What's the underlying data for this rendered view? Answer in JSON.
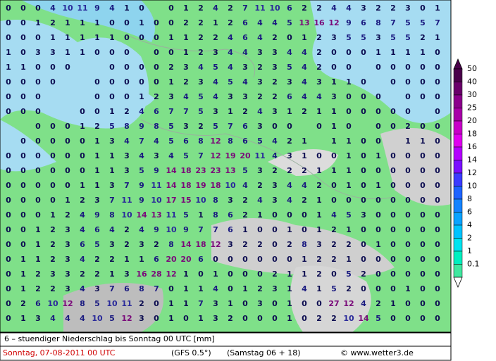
{
  "footer": {
    "title": "6 – stuendiger Niederschlag bis Sonntag 00 UTC [mm]",
    "date": "Sonntag, 07-08-2011  00 UTC",
    "model": "(GFS 0.5°)",
    "run": "(Samstag 06 + 18)",
    "copyright": "© www.wetter3.de"
  },
  "legend": {
    "levels": [
      50,
      40,
      30,
      25,
      20,
      18,
      16,
      14,
      12,
      10,
      8,
      6,
      4,
      2,
      1,
      0.1
    ],
    "colors": [
      "#4a004a",
      "#6a006a",
      "#8c008c",
      "#a800a8",
      "#c800c8",
      "#e000f0",
      "#b400ff",
      "#7a10ff",
      "#3c3cff",
      "#1e64ff",
      "#1484ff",
      "#0aa4ff",
      "#00c4ff",
      "#00e4f0",
      "#00f0c0",
      "#40e8a0"
    ]
  },
  "grid": {
    "rows": [
      [
        0,
        0,
        0,
        4,
        10,
        11,
        9,
        4,
        1,
        0,
        null,
        0,
        1,
        2,
        4,
        2,
        7,
        11,
        10,
        6,
        2,
        2,
        4,
        4,
        3,
        2,
        2,
        3,
        0,
        1
      ],
      [
        0,
        0,
        1,
        2,
        1,
        1,
        1,
        0,
        0,
        1,
        0,
        0,
        2,
        2,
        1,
        2,
        6,
        4,
        4,
        5,
        13,
        16,
        12,
        9,
        6,
        8,
        7,
        5,
        5,
        7
      ],
      [
        0,
        0,
        0,
        1,
        1,
        1,
        1,
        1,
        0,
        0,
        0,
        1,
        1,
        2,
        2,
        4,
        6,
        4,
        2,
        0,
        1,
        2,
        3,
        5,
        5,
        3,
        5,
        5,
        2,
        1
      ],
      [
        1,
        0,
        3,
        3,
        1,
        1,
        0,
        0,
        0,
        null,
        0,
        0,
        1,
        2,
        3,
        4,
        4,
        3,
        3,
        4,
        4,
        2,
        0,
        0,
        0,
        1,
        1,
        1,
        1,
        0
      ],
      [
        1,
        1,
        0,
        0,
        0,
        null,
        null,
        0,
        0,
        0,
        0,
        2,
        3,
        4,
        5,
        4,
        3,
        2,
        3,
        5,
        4,
        2,
        0,
        0,
        null,
        0,
        0,
        0,
        0,
        0
      ],
      [
        0,
        0,
        0,
        0,
        null,
        null,
        0,
        0,
        0,
        0,
        0,
        1,
        2,
        3,
        4,
        5,
        4,
        3,
        2,
        3,
        4,
        3,
        1,
        1,
        0,
        null,
        0,
        0,
        0,
        0
      ],
      [
        0,
        0,
        0,
        null,
        null,
        null,
        0,
        0,
        0,
        1,
        2,
        3,
        4,
        5,
        4,
        3,
        3,
        2,
        2,
        6,
        4,
        4,
        3,
        0,
        0,
        0,
        null,
        0,
        0,
        0
      ],
      [
        0,
        0,
        0,
        null,
        null,
        0,
        0,
        1,
        2,
        4,
        6,
        7,
        7,
        5,
        3,
        1,
        2,
        4,
        3,
        1,
        2,
        1,
        1,
        0,
        0,
        0,
        0,
        0,
        null,
        0
      ],
      [
        null,
        null,
        0,
        0,
        0,
        1,
        2,
        5,
        8,
        9,
        8,
        5,
        3,
        2,
        5,
        7,
        6,
        3,
        0,
        0,
        null,
        0,
        1,
        0,
        null,
        0,
        0,
        2,
        0,
        0
      ],
      [
        null,
        0,
        0,
        0,
        0,
        0,
        1,
        3,
        4,
        7,
        4,
        5,
        6,
        8,
        12,
        8,
        6,
        5,
        4,
        2,
        1,
        null,
        1,
        1,
        0,
        0,
        null,
        1,
        1,
        0
      ],
      [
        0,
        0,
        0,
        0,
        0,
        0,
        1,
        1,
        3,
        4,
        3,
        4,
        5,
        7,
        12,
        19,
        20,
        11,
        4,
        3,
        1,
        0,
        0,
        1,
        0,
        1,
        0,
        0,
        0,
        0
      ],
      [
        0,
        0,
        0,
        0,
        0,
        0,
        1,
        1,
        3,
        5,
        9,
        14,
        18,
        23,
        23,
        13,
        5,
        3,
        2,
        2,
        2,
        1,
        1,
        1,
        0,
        0,
        0,
        0,
        0,
        0
      ],
      [
        0,
        0,
        0,
        0,
        0,
        1,
        1,
        3,
        7,
        9,
        11,
        14,
        18,
        19,
        18,
        10,
        4,
        2,
        3,
        4,
        4,
        2,
        0,
        1,
        0,
        1,
        0,
        0,
        0,
        0
      ],
      [
        0,
        0,
        0,
        0,
        1,
        2,
        3,
        7,
        11,
        9,
        10,
        17,
        15,
        10,
        8,
        3,
        2,
        4,
        3,
        4,
        2,
        1,
        0,
        0,
        0,
        0,
        0,
        0,
        0,
        0
      ],
      [
        0,
        0,
        0,
        1,
        2,
        4,
        9,
        8,
        10,
        14,
        13,
        11,
        5,
        1,
        8,
        6,
        2,
        1,
        0,
        0,
        0,
        1,
        4,
        5,
        3,
        0,
        0,
        0,
        0,
        0
      ],
      [
        0,
        0,
        1,
        2,
        3,
        4,
        6,
        4,
        2,
        4,
        9,
        10,
        9,
        7,
        7,
        6,
        1,
        0,
        0,
        1,
        0,
        1,
        2,
        1,
        0,
        0,
        0,
        0,
        0,
        0
      ],
      [
        0,
        0,
        1,
        2,
        3,
        6,
        5,
        3,
        2,
        3,
        2,
        8,
        14,
        18,
        12,
        3,
        2,
        2,
        0,
        2,
        8,
        3,
        2,
        2,
        0,
        1,
        0,
        0,
        0,
        0
      ],
      [
        0,
        1,
        1,
        2,
        3,
        4,
        2,
        2,
        1,
        1,
        6,
        20,
        20,
        6,
        0,
        0,
        0,
        0,
        0,
        0,
        1,
        2,
        2,
        1,
        0,
        0,
        0,
        0,
        0,
        0
      ],
      [
        0,
        1,
        2,
        3,
        3,
        2,
        2,
        1,
        3,
        16,
        28,
        12,
        1,
        0,
        1,
        0,
        0,
        0,
        2,
        1,
        1,
        2,
        0,
        5,
        2,
        0,
        0,
        0,
        0,
        0
      ],
      [
        0,
        1,
        2,
        2,
        3,
        4,
        3,
        7,
        6,
        8,
        7,
        0,
        1,
        1,
        4,
        0,
        1,
        2,
        3,
        1,
        4,
        1,
        5,
        2,
        0,
        0,
        0,
        1,
        0,
        0
      ],
      [
        0,
        2,
        6,
        10,
        12,
        8,
        5,
        10,
        11,
        2,
        0,
        1,
        1,
        7,
        3,
        1,
        0,
        3,
        0,
        1,
        0,
        0,
        27,
        12,
        4,
        2,
        1,
        0,
        0,
        0
      ],
      [
        0,
        1,
        3,
        4,
        4,
        4,
        10,
        5,
        12,
        3,
        0,
        1,
        0,
        1,
        3,
        2,
        0,
        0,
        0,
        1,
        0,
        2,
        2,
        10,
        14,
        5,
        0,
        0,
        0,
        0
      ]
    ]
  }
}
